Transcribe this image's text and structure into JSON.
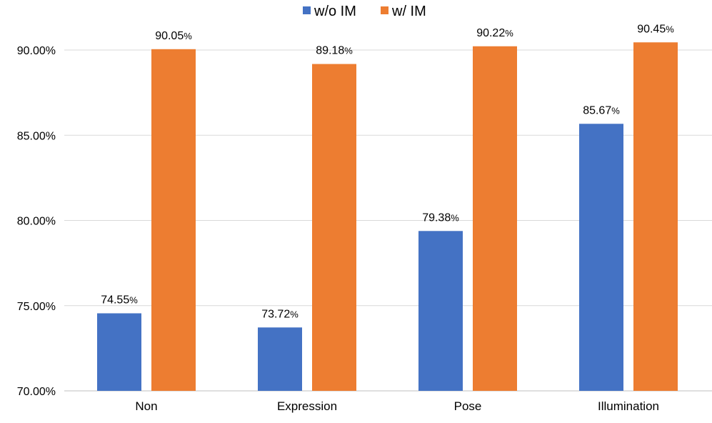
{
  "chart_data": {
    "type": "bar",
    "categories": [
      "Non",
      "Expression",
      "Pose",
      "Illumination"
    ],
    "series": [
      {
        "name": "w/o IM",
        "values": [
          74.55,
          73.72,
          79.38,
          85.67
        ],
        "labels": [
          "74.55",
          "73.72",
          "79.38",
          "85.67"
        ],
        "color": "#4472C4"
      },
      {
        "name": "w/ IM",
        "values": [
          90.05,
          89.18,
          90.22,
          90.45
        ],
        "labels": [
          "90.05",
          "89.18",
          "90.22",
          "90.45"
        ],
        "color": "#ED7D31"
      }
    ],
    "value_suffix": "%",
    "yticks": [
      "70.00%",
      "75.00%",
      "80.00%",
      "85.00%",
      "90.00%"
    ],
    "ytick_values": [
      70,
      75,
      80,
      85,
      90
    ],
    "ylim": [
      70,
      92
    ],
    "grid": true,
    "gridline_color": "#D9D9D9",
    "legend_position": "top"
  }
}
